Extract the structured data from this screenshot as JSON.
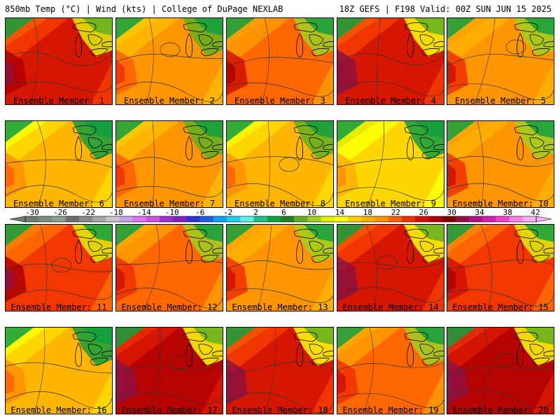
{
  "header": {
    "left": "850mb Temp (°C) | Wind (kts) | College of DuPage NEXLAB",
    "right": "18Z GEFS | F198 Valid: 00Z SUN JUN 15 2025"
  },
  "member_label_prefix": "Ensemble Member: ",
  "members": [
    {
      "id": "1",
      "warmth": 0.8
    },
    {
      "id": "2",
      "warmth": 0.5
    },
    {
      "id": "3",
      "warmth": 0.65
    },
    {
      "id": "4",
      "warmth": 0.85
    },
    {
      "id": "5",
      "warmth": 0.55
    },
    {
      "id": "6",
      "warmth": 0.35
    },
    {
      "id": "7",
      "warmth": 0.5
    },
    {
      "id": "8",
      "warmth": 0.4
    },
    {
      "id": "9",
      "warmth": 0.3
    },
    {
      "id": "10",
      "warmth": 0.55
    },
    {
      "id": "11",
      "warmth": 0.75
    },
    {
      "id": "12",
      "warmth": 0.6
    },
    {
      "id": "13",
      "warmth": 0.55
    },
    {
      "id": "14",
      "warmth": 0.85
    },
    {
      "id": "15",
      "warmth": 0.7
    },
    {
      "id": "16",
      "warmth": 0.35
    },
    {
      "id": "17",
      "warmth": 0.9
    },
    {
      "id": "18",
      "warmth": 0.85
    },
    {
      "id": "19",
      "warmth": 0.6
    },
    {
      "id": "20",
      "warmth": 0.95
    }
  ],
  "colorbar": {
    "tick_labels": [
      "-30",
      "-26",
      "-22",
      "-18",
      "-14",
      "-10",
      "-6",
      "-2",
      "2",
      "6",
      "10",
      "14",
      "18",
      "22",
      "26",
      "30",
      "34",
      "38",
      "42"
    ],
    "colors": [
      "#6b7d6b",
      "#7a8f7a",
      "#8aa08a",
      "#6e6e6e",
      "#8c8c8c",
      "#a8a8a8",
      "#c8c8c8",
      "#c8a0e8",
      "#e070f0",
      "#d050e0",
      "#a030d0",
      "#8020c0",
      "#3030d0",
      "#2060e0",
      "#10a0f0",
      "#20d0f0",
      "#60f0e0",
      "#20c080",
      "#10a040",
      "#208020",
      "#60b020",
      "#a0d020",
      "#e0f000",
      "#ffff00",
      "#ffd000",
      "#ffb000",
      "#ff9000",
      "#ff6000",
      "#f03000",
      "#d01000",
      "#b00000",
      "#800000",
      "#901040",
      "#b01080",
      "#d020b0",
      "#f040d0",
      "#ff80e8",
      "#ffb0f0"
    ]
  }
}
